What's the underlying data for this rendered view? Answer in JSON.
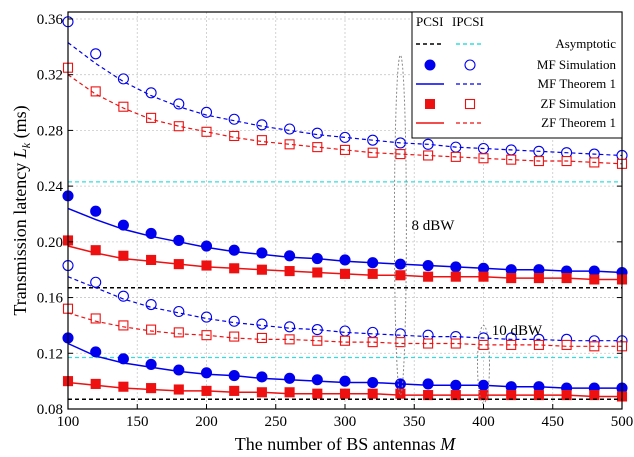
{
  "chart_data": {
    "type": "line",
    "xlabel_prefix": "The number of BS antennas ",
    "xlabel_var": "M",
    "ylabel_prefix": "Transmission latency ",
    "ylabel_var": "L",
    "ylabel_sub": "k",
    "ylabel_suffix": " (ms)",
    "xlim": [
      100,
      500
    ],
    "ylim": [
      0.08,
      0.365
    ],
    "xticks": [
      "100",
      "150",
      "200",
      "250",
      "300",
      "350",
      "400",
      "450",
      "500"
    ],
    "yticks": [
      "0.08",
      "0.12",
      "0.16",
      "0.20",
      "0.24",
      "0.28",
      "0.32",
      "0.36"
    ],
    "grid": true,
    "legend": {
      "position": "top-right",
      "header_pcsi": "PCSI",
      "header_ipcsi": "IPCSI",
      "entries": [
        "Asymptotic",
        "MF Simulation",
        "MF Theorem 1",
        "ZF Simulation",
        "ZF Theorem 1"
      ]
    },
    "annotations": [
      "8 dBW",
      "10 dBW"
    ],
    "colors": {
      "mf": "#0000ee",
      "zf": "#ee1111",
      "asym_pcsi": "#000000",
      "asym_ipcsi": "#33dddd"
    },
    "x": [
      100,
      120,
      140,
      160,
      180,
      200,
      220,
      240,
      260,
      280,
      300,
      320,
      340,
      360,
      380,
      400,
      420,
      440,
      460,
      480,
      500
    ],
    "series": [
      {
        "power": "8 dBW",
        "csi": "IPCSI",
        "kind": "MF Simulation",
        "values": [
          0.358,
          0.335,
          0.317,
          0.307,
          0.299,
          0.293,
          0.288,
          0.284,
          0.281,
          0.278,
          0.275,
          0.273,
          0.271,
          0.27,
          0.268,
          0.267,
          0.266,
          0.265,
          0.264,
          0.263,
          0.262
        ]
      },
      {
        "power": "8 dBW",
        "csi": "IPCSI",
        "kind": "MF Theorem 1",
        "values": [
          0.343,
          0.328,
          0.315,
          0.305,
          0.297,
          0.291,
          0.287,
          0.283,
          0.28,
          0.277,
          0.275,
          0.273,
          0.271,
          0.27,
          0.268,
          0.267,
          0.266,
          0.265,
          0.264,
          0.263,
          0.262
        ]
      },
      {
        "power": "8 dBW",
        "csi": "IPCSI",
        "kind": "ZF Simulation",
        "values": [
          0.325,
          0.308,
          0.297,
          0.289,
          0.283,
          0.279,
          0.276,
          0.273,
          0.27,
          0.268,
          0.266,
          0.264,
          0.263,
          0.262,
          0.261,
          0.26,
          0.259,
          0.258,
          0.258,
          0.257,
          0.256
        ]
      },
      {
        "power": "8 dBW",
        "csi": "IPCSI",
        "kind": "ZF Theorem 1",
        "values": [
          0.32,
          0.306,
          0.296,
          0.288,
          0.283,
          0.279,
          0.275,
          0.272,
          0.27,
          0.268,
          0.266,
          0.264,
          0.263,
          0.262,
          0.261,
          0.26,
          0.259,
          0.258,
          0.258,
          0.257,
          0.256
        ]
      },
      {
        "power": "8 dBW",
        "csi": "IPCSI",
        "kind": "Asymptotic",
        "values": [
          0.243,
          0.243,
          0.243,
          0.243,
          0.243,
          0.243,
          0.243,
          0.243,
          0.243,
          0.243,
          0.243,
          0.243,
          0.243,
          0.243,
          0.243,
          0.243,
          0.243,
          0.243,
          0.243,
          0.243,
          0.243
        ]
      },
      {
        "power": "8 dBW",
        "csi": "PCSI",
        "kind": "MF Simulation",
        "values": [
          0.233,
          0.222,
          0.212,
          0.206,
          0.201,
          0.197,
          0.194,
          0.192,
          0.19,
          0.188,
          0.187,
          0.185,
          0.184,
          0.183,
          0.182,
          0.181,
          0.18,
          0.18,
          0.179,
          0.179,
          0.178
        ]
      },
      {
        "power": "8 dBW",
        "csi": "PCSI",
        "kind": "MF Theorem 1",
        "values": [
          0.224,
          0.216,
          0.209,
          0.204,
          0.2,
          0.196,
          0.193,
          0.191,
          0.189,
          0.188,
          0.186,
          0.185,
          0.184,
          0.183,
          0.182,
          0.181,
          0.18,
          0.18,
          0.179,
          0.179,
          0.178
        ]
      },
      {
        "power": "8 dBW",
        "csi": "PCSI",
        "kind": "ZF Simulation",
        "values": [
          0.201,
          0.194,
          0.19,
          0.187,
          0.184,
          0.183,
          0.181,
          0.18,
          0.179,
          0.178,
          0.177,
          0.177,
          0.176,
          0.175,
          0.175,
          0.175,
          0.174,
          0.174,
          0.174,
          0.173,
          0.173
        ]
      },
      {
        "power": "8 dBW",
        "csi": "PCSI",
        "kind": "ZF Theorem 1",
        "values": [
          0.197,
          0.192,
          0.188,
          0.186,
          0.184,
          0.182,
          0.181,
          0.18,
          0.179,
          0.178,
          0.177,
          0.176,
          0.176,
          0.175,
          0.175,
          0.175,
          0.174,
          0.174,
          0.174,
          0.173,
          0.173
        ]
      },
      {
        "power": "8 dBW",
        "csi": "PCSI",
        "kind": "Asymptotic",
        "values": [
          0.167,
          0.167,
          0.167,
          0.167,
          0.167,
          0.167,
          0.167,
          0.167,
          0.167,
          0.167,
          0.167,
          0.167,
          0.167,
          0.167,
          0.167,
          0.167,
          0.167,
          0.167,
          0.167,
          0.167,
          0.167
        ]
      },
      {
        "power": "10 dBW",
        "csi": "IPCSI",
        "kind": "MF Simulation",
        "values": [
          0.183,
          0.171,
          0.161,
          0.155,
          0.15,
          0.146,
          0.143,
          0.141,
          0.139,
          0.137,
          0.136,
          0.135,
          0.134,
          0.133,
          0.132,
          0.131,
          0.131,
          0.13,
          0.13,
          0.129,
          0.129
        ]
      },
      {
        "power": "10 dBW",
        "csi": "IPCSI",
        "kind": "MF Theorem 1",
        "values": [
          0.175,
          0.167,
          0.159,
          0.153,
          0.149,
          0.145,
          0.142,
          0.14,
          0.138,
          0.137,
          0.135,
          0.134,
          0.133,
          0.132,
          0.132,
          0.131,
          0.13,
          0.13,
          0.129,
          0.129,
          0.129
        ]
      },
      {
        "power": "10 dBW",
        "csi": "IPCSI",
        "kind": "ZF Simulation",
        "values": [
          0.152,
          0.145,
          0.14,
          0.137,
          0.135,
          0.133,
          0.132,
          0.131,
          0.13,
          0.129,
          0.129,
          0.128,
          0.128,
          0.127,
          0.127,
          0.126,
          0.126,
          0.126,
          0.126,
          0.125,
          0.125
        ]
      },
      {
        "power": "10 dBW",
        "csi": "IPCSI",
        "kind": "ZF Theorem 1",
        "values": [
          0.149,
          0.143,
          0.139,
          0.136,
          0.134,
          0.133,
          0.131,
          0.13,
          0.13,
          0.129,
          0.128,
          0.128,
          0.127,
          0.127,
          0.127,
          0.126,
          0.126,
          0.126,
          0.125,
          0.125,
          0.125
        ]
      },
      {
        "power": "10 dBW",
        "csi": "IPCSI",
        "kind": "Asymptotic",
        "values": [
          0.117,
          0.117,
          0.117,
          0.117,
          0.117,
          0.117,
          0.117,
          0.117,
          0.117,
          0.117,
          0.117,
          0.117,
          0.117,
          0.117,
          0.117,
          0.117,
          0.117,
          0.117,
          0.117,
          0.117,
          0.117
        ]
      },
      {
        "power": "10 dBW",
        "csi": "PCSI",
        "kind": "MF Simulation",
        "values": [
          0.131,
          0.121,
          0.116,
          0.112,
          0.108,
          0.106,
          0.104,
          0.103,
          0.102,
          0.101,
          0.1,
          0.099,
          0.098,
          0.098,
          0.097,
          0.097,
          0.096,
          0.096,
          0.095,
          0.095,
          0.095
        ]
      },
      {
        "power": "10 dBW",
        "csi": "PCSI",
        "kind": "MF Theorem 1",
        "values": [
          0.127,
          0.118,
          0.113,
          0.11,
          0.107,
          0.105,
          0.104,
          0.102,
          0.101,
          0.1,
          0.099,
          0.099,
          0.098,
          0.097,
          0.097,
          0.097,
          0.096,
          0.096,
          0.095,
          0.095,
          0.095
        ]
      },
      {
        "power": "10 dBW",
        "csi": "PCSI",
        "kind": "ZF Simulation",
        "values": [
          0.1,
          0.098,
          0.096,
          0.095,
          0.094,
          0.093,
          0.093,
          0.092,
          0.092,
          0.091,
          0.091,
          0.091,
          0.091,
          0.09,
          0.09,
          0.09,
          0.09,
          0.09,
          0.09,
          0.09,
          0.089
        ]
      },
      {
        "power": "10 dBW",
        "csi": "PCSI",
        "kind": "ZF Theorem 1",
        "values": [
          0.099,
          0.097,
          0.095,
          0.094,
          0.093,
          0.093,
          0.092,
          0.092,
          0.091,
          0.091,
          0.091,
          0.091,
          0.09,
          0.09,
          0.09,
          0.09,
          0.09,
          0.09,
          0.09,
          0.089,
          0.089
        ]
      },
      {
        "power": "10 dBW",
        "csi": "PCSI",
        "kind": "Asymptotic",
        "values": [
          0.087,
          0.087,
          0.087,
          0.087,
          0.087,
          0.087,
          0.087,
          0.087,
          0.087,
          0.087,
          0.087,
          0.087,
          0.087,
          0.087,
          0.087,
          0.087,
          0.087,
          0.087,
          0.087,
          0.087,
          0.087
        ]
      }
    ]
  }
}
